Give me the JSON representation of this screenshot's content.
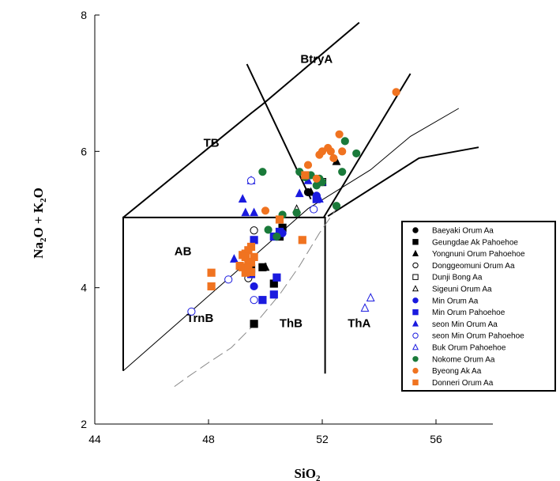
{
  "chart_data": {
    "type": "scatter",
    "title": "",
    "xlabel": "SiO2",
    "ylabel": "Na2O + K2O",
    "xlim": [
      44,
      58
    ],
    "ylim": [
      2,
      8
    ],
    "x_ticks": [
      "44",
      "48",
      "52",
      "56"
    ],
    "y_ticks": [
      "2",
      "4",
      "6",
      "8"
    ],
    "grid": false,
    "legend_position": "right",
    "field_labels": [
      {
        "text": "BtryA",
        "x": 51.8,
        "y": 7.3
      },
      {
        "text": "TB",
        "x": 48.1,
        "y": 6.07
      },
      {
        "text": "AB",
        "x": 47.1,
        "y": 4.48
      },
      {
        "text": "TrnB",
        "x": 47.7,
        "y": 3.5
      },
      {
        "text": "ThB",
        "x": 50.9,
        "y": 3.42
      },
      {
        "text": "ThA",
        "x": 53.3,
        "y": 3.42
      }
    ],
    "boundary_lines": [
      [
        [
          45,
          2.78
        ],
        [
          45,
          5.03
        ],
        [
          52.1,
          5.03
        ],
        [
          52.1,
          2.74
        ]
      ],
      [
        [
          45,
          5.03
        ],
        [
          49.5,
          6.56
        ],
        [
          49.9,
          6.69
        ],
        [
          53.3,
          7.89
        ]
      ],
      [
        [
          49.35,
          7.28
        ],
        [
          51.6,
          5.3
        ]
      ],
      [
        [
          52.05,
          5.03
        ],
        [
          55.1,
          7.14
        ]
      ],
      [
        [
          52.2,
          5.05
        ],
        [
          55.4,
          5.9
        ],
        [
          57.5,
          6.06
        ]
      ],
      [
        [
          45,
          2.78
        ],
        [
          51.5,
          5.16
        ],
        [
          53.7,
          5.73
        ],
        [
          55.1,
          6.22
        ],
        [
          56.8,
          6.63
        ]
      ]
    ],
    "dashed_line": [
      [
        46.8,
        2.55
      ],
      [
        47.3,
        2.7
      ],
      [
        48.0,
        2.9
      ],
      [
        48.8,
        3.12
      ],
      [
        49.7,
        3.5
      ],
      [
        50.5,
        3.9
      ],
      [
        51.2,
        4.32
      ],
      [
        51.9,
        4.8
      ],
      [
        52.6,
        5.22
      ]
    ],
    "series": [
      {
        "name": "Baeyaki Orum Aa",
        "marker": "circle",
        "fill": "filled",
        "color": "#000000",
        "points": [
          [
            51.5,
            5.4
          ]
        ]
      },
      {
        "name": "Geungdae Ak Pahoehoe",
        "marker": "square",
        "fill": "filled",
        "color": "#000000",
        "points": [
          [
            50.6,
            4.88
          ],
          [
            50.5,
            4.75
          ],
          [
            49.9,
            4.3
          ],
          [
            50.3,
            4.06
          ],
          [
            49.5,
            4.28
          ],
          [
            49.6,
            3.47
          ]
        ]
      },
      {
        "name": "Yongnuni Orum Pahoehoe",
        "marker": "triangle",
        "fill": "filled",
        "color": "#000000",
        "points": [
          [
            52.5,
            5.85
          ],
          [
            51.6,
            5.4
          ],
          [
            50.0,
            4.3
          ]
        ]
      },
      {
        "name": "Donggeomuni Orum Aa",
        "marker": "circle",
        "fill": "open",
        "color": "#000000",
        "points": [
          [
            49.6,
            4.84
          ],
          [
            49.4,
            4.14
          ]
        ]
      },
      {
        "name": "Dunji Bong Aa",
        "marker": "square",
        "fill": "open",
        "color": "#000000",
        "points": [
          [
            52.0,
            5.55
          ]
        ]
      },
      {
        "name": "Sigeuni Orum Aa",
        "marker": "triangle",
        "fill": "open",
        "color": "#000000",
        "points": [
          [
            51.1,
            5.15
          ]
        ]
      },
      {
        "name": "Min Orum Aa",
        "marker": "circle",
        "fill": "filled",
        "color": "#1a1adf",
        "points": [
          [
            49.6,
            4.02
          ],
          [
            50.6,
            4.8
          ],
          [
            51.8,
            5.35
          ]
        ]
      },
      {
        "name": "Min Orum Pahoehoe",
        "marker": "square",
        "fill": "filled",
        "color": "#1a1adf",
        "points": [
          [
            49.6,
            4.7
          ],
          [
            50.3,
            4.75
          ],
          [
            50.5,
            4.82
          ],
          [
            50.4,
            4.15
          ],
          [
            50.3,
            3.9
          ],
          [
            49.9,
            3.82
          ],
          [
            51.8,
            5.3
          ],
          [
            49.5,
            4.2
          ]
        ]
      },
      {
        "name": "seon Min Orum Aa",
        "marker": "triangle",
        "fill": "filled",
        "color": "#1a1adf",
        "points": [
          [
            49.5,
            5.57
          ],
          [
            49.2,
            5.3
          ],
          [
            49.3,
            5.1
          ],
          [
            49.6,
            5.1
          ],
          [
            51.2,
            5.38
          ],
          [
            51.5,
            5.57
          ],
          [
            51.9,
            5.3
          ],
          [
            48.9,
            4.42
          ],
          [
            52.0,
            5.55
          ]
        ]
      },
      {
        "name": "seon Min Orum Pahoehoe",
        "marker": "circle",
        "fill": "open",
        "color": "#1a1adf",
        "points": [
          [
            49.5,
            5.57
          ],
          [
            48.7,
            4.12
          ],
          [
            47.4,
            3.65
          ],
          [
            49.6,
            3.82
          ],
          [
            51.7,
            5.15
          ]
        ]
      },
      {
        "name": "Buk Orum Pahoehoe",
        "marker": "triangle",
        "fill": "open",
        "color": "#1a1adf",
        "points": [
          [
            53.7,
            3.85
          ],
          [
            53.5,
            3.7
          ]
        ]
      },
      {
        "name": "Nokome Orum Aa",
        "marker": "circle",
        "fill": "filled",
        "color": "#1a7a3a",
        "points": [
          [
            49.9,
            5.7
          ],
          [
            50.4,
            4.75
          ],
          [
            50.1,
            4.85
          ],
          [
            50.6,
            5.07
          ],
          [
            51.1,
            5.1
          ],
          [
            51.6,
            5.65
          ],
          [
            51.9,
            5.6
          ],
          [
            51.8,
            5.5
          ],
          [
            52.0,
            5.55
          ],
          [
            52.5,
            5.2
          ],
          [
            52.7,
            5.7
          ],
          [
            52.8,
            6.15
          ],
          [
            53.2,
            5.97
          ],
          [
            51.2,
            5.7
          ],
          [
            51.4,
            5.62
          ]
        ]
      },
      {
        "name": "Byeong Ak Aa",
        "marker": "circle",
        "fill": "filled",
        "color": "#f07320",
        "points": [
          [
            50.0,
            5.13
          ],
          [
            51.5,
            5.8
          ],
          [
            51.9,
            5.95
          ],
          [
            52.0,
            6.0
          ],
          [
            52.2,
            6.05
          ],
          [
            52.3,
            6.0
          ],
          [
            52.6,
            6.25
          ],
          [
            52.7,
            6.0
          ],
          [
            52.4,
            5.9
          ],
          [
            54.6,
            6.87
          ],
          [
            51.8,
            5.6
          ]
        ]
      },
      {
        "name": "Donneri Orum Aa",
        "marker": "square",
        "fill": "filled",
        "color": "#f07320",
        "points": [
          [
            49.2,
            4.48
          ],
          [
            49.3,
            4.5
          ],
          [
            49.5,
            4.6
          ],
          [
            49.4,
            4.38
          ],
          [
            49.1,
            4.32
          ],
          [
            49.3,
            4.22
          ],
          [
            49.5,
            4.37
          ],
          [
            49.2,
            4.3
          ],
          [
            49.4,
            4.55
          ],
          [
            49.3,
            4.45
          ],
          [
            49.6,
            4.45
          ],
          [
            49.4,
            4.3
          ],
          [
            49.5,
            4.23
          ],
          [
            48.1,
            4.22
          ],
          [
            48.1,
            4.02
          ],
          [
            51.3,
            4.7
          ],
          [
            50.5,
            5.0
          ],
          [
            51.4,
            5.65
          ]
        ]
      }
    ]
  }
}
